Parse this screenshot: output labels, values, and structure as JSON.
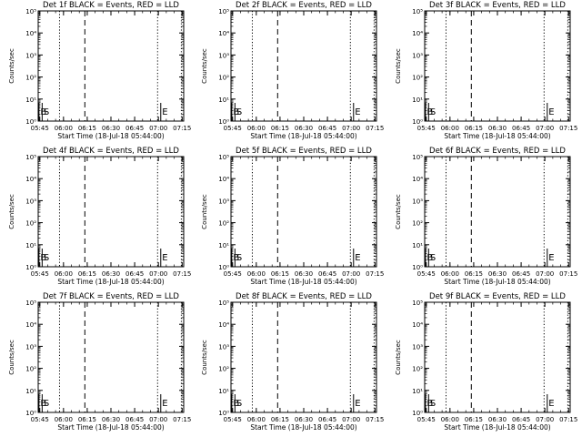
{
  "figure": {
    "background": "#ffffff",
    "foreground": "#000000",
    "lld_color": "#ff0000"
  },
  "chart_data": [
    {
      "type": "line",
      "title": "Det 1f BLACK = Events, RED = LLD",
      "xlabel": "Start Time (18-Jul-18 05:44:00)",
      "ylabel": "Counts/sec",
      "yscale": "log",
      "ylim": [
        1,
        100000
      ],
      "ytick_labels": [
        "10⁰",
        "10¹",
        "10²",
        "10³",
        "10⁴",
        "10⁵"
      ],
      "xtick_labels": [
        "05:45",
        "06:00",
        "06:15",
        "06:30",
        "06:45",
        "07:00",
        "07:15"
      ],
      "xlim_minutes": [
        0,
        92
      ],
      "xticks_minutes": [
        1,
        16,
        31,
        46,
        61,
        76,
        91
      ],
      "series": [],
      "markers": [
        {
          "label": "B",
          "style": "solid",
          "x_minutes": 0.5
        },
        {
          "label": "S",
          "style": "solid",
          "x_minutes": 2.5
        },
        {
          "label": "",
          "style": "dotted",
          "x_minutes": 13.5
        },
        {
          "label": "",
          "style": "dashed",
          "x_minutes": 29.5
        },
        {
          "label": "",
          "style": "dotted",
          "x_minutes": 75.5
        },
        {
          "label": "E",
          "style": "solid",
          "x_minutes": 77.5
        },
        {
          "label": "",
          "style": "dotted",
          "x_minutes": 90.5
        }
      ]
    },
    {
      "type": "line",
      "title": "Det 2f BLACK = Events, RED = LLD",
      "xlabel": "Start Time (18-Jul-18 05:44:00)",
      "ylabel": "Counts/sec",
      "yscale": "log",
      "ylim": [
        1,
        100000
      ],
      "ytick_labels": [
        "10⁰",
        "10¹",
        "10²",
        "10³",
        "10⁴",
        "10⁵"
      ],
      "xtick_labels": [
        "05:45",
        "06:00",
        "06:15",
        "06:30",
        "06:45",
        "07:00",
        "07:15"
      ],
      "xlim_minutes": [
        0,
        92
      ],
      "xticks_minutes": [
        1,
        16,
        31,
        46,
        61,
        76,
        91
      ],
      "series": [],
      "markers": [
        {
          "label": "B",
          "style": "solid",
          "x_minutes": 0.5
        },
        {
          "label": "S",
          "style": "solid",
          "x_minutes": 2.5
        },
        {
          "label": "",
          "style": "dotted",
          "x_minutes": 13.5
        },
        {
          "label": "",
          "style": "dashed",
          "x_minutes": 29.5
        },
        {
          "label": "",
          "style": "dotted",
          "x_minutes": 75.5
        },
        {
          "label": "E",
          "style": "solid",
          "x_minutes": 77.5
        },
        {
          "label": "",
          "style": "dotted",
          "x_minutes": 90.5
        }
      ]
    },
    {
      "type": "line",
      "title": "Det 3f BLACK = Events, RED = LLD",
      "xlabel": "Start Time (18-Jul-18 05:44:00)",
      "ylabel": "Counts/sec",
      "yscale": "log",
      "ylim": [
        1,
        100000
      ],
      "ytick_labels": [
        "10⁰",
        "10¹",
        "10²",
        "10³",
        "10⁴",
        "10⁵"
      ],
      "xtick_labels": [
        "05:45",
        "06:00",
        "06:15",
        "06:30",
        "06:45",
        "07:00",
        "07:15"
      ],
      "xlim_minutes": [
        0,
        92
      ],
      "xticks_minutes": [
        1,
        16,
        31,
        46,
        61,
        76,
        91
      ],
      "series": [],
      "markers": [
        {
          "label": "B",
          "style": "solid",
          "x_minutes": 0.5
        },
        {
          "label": "S",
          "style": "solid",
          "x_minutes": 2.5
        },
        {
          "label": "",
          "style": "dotted",
          "x_minutes": 13.5
        },
        {
          "label": "",
          "style": "dashed",
          "x_minutes": 29.5
        },
        {
          "label": "",
          "style": "dotted",
          "x_minutes": 75.5
        },
        {
          "label": "E",
          "style": "solid",
          "x_minutes": 77.5
        },
        {
          "label": "",
          "style": "dotted",
          "x_minutes": 90.5
        }
      ]
    },
    {
      "type": "line",
      "title": "Det 4f BLACK = Events, RED = LLD",
      "xlabel": "Start Time (18-Jul-18 05:44:00)",
      "ylabel": "Counts/sec",
      "yscale": "log",
      "ylim": [
        1,
        100000
      ],
      "ytick_labels": [
        "10⁰",
        "10¹",
        "10²",
        "10³",
        "10⁴",
        "10⁵"
      ],
      "xtick_labels": [
        "05:45",
        "06:00",
        "06:15",
        "06:30",
        "06:45",
        "07:00",
        "07:15"
      ],
      "xlim_minutes": [
        0,
        92
      ],
      "xticks_minutes": [
        1,
        16,
        31,
        46,
        61,
        76,
        91
      ],
      "series": [],
      "markers": [
        {
          "label": "B",
          "style": "solid",
          "x_minutes": 0.5
        },
        {
          "label": "S",
          "style": "solid",
          "x_minutes": 2.5
        },
        {
          "label": "",
          "style": "dotted",
          "x_minutes": 13.5
        },
        {
          "label": "",
          "style": "dashed",
          "x_minutes": 29.5
        },
        {
          "label": "",
          "style": "dotted",
          "x_minutes": 75.5
        },
        {
          "label": "E",
          "style": "solid",
          "x_minutes": 77.5
        },
        {
          "label": "",
          "style": "dotted",
          "x_minutes": 90.5
        }
      ]
    },
    {
      "type": "line",
      "title": "Det 5f BLACK = Events, RED = LLD",
      "xlabel": "Start Time (18-Jul-18 05:44:00)",
      "ylabel": "Counts/sec",
      "yscale": "log",
      "ylim": [
        1,
        100000
      ],
      "ytick_labels": [
        "10⁰",
        "10¹",
        "10²",
        "10³",
        "10⁴",
        "10⁵"
      ],
      "xtick_labels": [
        "05:45",
        "06:00",
        "06:15",
        "06:30",
        "06:45",
        "07:00",
        "07:15"
      ],
      "xlim_minutes": [
        0,
        92
      ],
      "xticks_minutes": [
        1,
        16,
        31,
        46,
        61,
        76,
        91
      ],
      "series": [],
      "markers": [
        {
          "label": "B",
          "style": "solid",
          "x_minutes": 0.5
        },
        {
          "label": "S",
          "style": "solid",
          "x_minutes": 2.5
        },
        {
          "label": "",
          "style": "dotted",
          "x_minutes": 13.5
        },
        {
          "label": "",
          "style": "dashed",
          "x_minutes": 29.5
        },
        {
          "label": "",
          "style": "dotted",
          "x_minutes": 75.5
        },
        {
          "label": "E",
          "style": "solid",
          "x_minutes": 77.5
        },
        {
          "label": "",
          "style": "dotted",
          "x_minutes": 90.5
        }
      ]
    },
    {
      "type": "line",
      "title": "Det 6f BLACK = Events, RED = LLD",
      "xlabel": "Start Time (18-Jul-18 05:44:00)",
      "ylabel": "Counts/sec",
      "yscale": "log",
      "ylim": [
        1,
        100000
      ],
      "ytick_labels": [
        "10⁰",
        "10¹",
        "10²",
        "10³",
        "10⁴",
        "10⁵"
      ],
      "xtick_labels": [
        "05:45",
        "06:00",
        "06:15",
        "06:30",
        "06:45",
        "07:00",
        "07:15"
      ],
      "xlim_minutes": [
        0,
        92
      ],
      "xticks_minutes": [
        1,
        16,
        31,
        46,
        61,
        76,
        91
      ],
      "series": [],
      "markers": [
        {
          "label": "B",
          "style": "solid",
          "x_minutes": 0.5
        },
        {
          "label": "S",
          "style": "solid",
          "x_minutes": 2.5
        },
        {
          "label": "",
          "style": "dotted",
          "x_minutes": 13.5
        },
        {
          "label": "",
          "style": "dashed",
          "x_minutes": 29.5
        },
        {
          "label": "",
          "style": "dotted",
          "x_minutes": 75.5
        },
        {
          "label": "E",
          "style": "solid",
          "x_minutes": 77.5
        },
        {
          "label": "",
          "style": "dotted",
          "x_minutes": 90.5
        }
      ]
    },
    {
      "type": "line",
      "title": "Det 7f BLACK = Events, RED = LLD",
      "xlabel": "Start Time (18-Jul-18 05:44:00)",
      "ylabel": "Counts/sec",
      "yscale": "log",
      "ylim": [
        1,
        100000
      ],
      "ytick_labels": [
        "10⁰",
        "10¹",
        "10²",
        "10³",
        "10⁴",
        "10⁵"
      ],
      "xtick_labels": [
        "05:45",
        "06:00",
        "06:15",
        "06:30",
        "06:45",
        "07:00",
        "07:15"
      ],
      "xlim_minutes": [
        0,
        92
      ],
      "xticks_minutes": [
        1,
        16,
        31,
        46,
        61,
        76,
        91
      ],
      "series": [],
      "markers": [
        {
          "label": "B",
          "style": "solid",
          "x_minutes": 0.5
        },
        {
          "label": "S",
          "style": "solid",
          "x_minutes": 2.5
        },
        {
          "label": "",
          "style": "dotted",
          "x_minutes": 13.5
        },
        {
          "label": "",
          "style": "dashed",
          "x_minutes": 29.5
        },
        {
          "label": "",
          "style": "dotted",
          "x_minutes": 75.5
        },
        {
          "label": "E",
          "style": "solid",
          "x_minutes": 77.5
        },
        {
          "label": "",
          "style": "dotted",
          "x_minutes": 90.5
        }
      ]
    },
    {
      "type": "line",
      "title": "Det 8f BLACK = Events, RED = LLD",
      "xlabel": "Start Time (18-Jul-18 05:44:00)",
      "ylabel": "Counts/sec",
      "yscale": "log",
      "ylim": [
        1,
        100000
      ],
      "ytick_labels": [
        "10⁰",
        "10¹",
        "10²",
        "10³",
        "10⁴",
        "10⁵"
      ],
      "xtick_labels": [
        "05:45",
        "06:00",
        "06:15",
        "06:30",
        "06:45",
        "07:00",
        "07:15"
      ],
      "xlim_minutes": [
        0,
        92
      ],
      "xticks_minutes": [
        1,
        16,
        31,
        46,
        61,
        76,
        91
      ],
      "series": [],
      "markers": [
        {
          "label": "B",
          "style": "solid",
          "x_minutes": 0.5
        },
        {
          "label": "S",
          "style": "solid",
          "x_minutes": 2.5
        },
        {
          "label": "",
          "style": "dotted",
          "x_minutes": 13.5
        },
        {
          "label": "",
          "style": "dashed",
          "x_minutes": 29.5
        },
        {
          "label": "",
          "style": "dotted",
          "x_minutes": 75.5
        },
        {
          "label": "E",
          "style": "solid",
          "x_minutes": 77.5
        },
        {
          "label": "",
          "style": "dotted",
          "x_minutes": 90.5
        }
      ]
    },
    {
      "type": "line",
      "title": "Det 9f BLACK = Events, RED = LLD",
      "xlabel": "Start Time (18-Jul-18 05:44:00)",
      "ylabel": "Counts/sec",
      "yscale": "log",
      "ylim": [
        1,
        100000
      ],
      "ytick_labels": [
        "10⁰",
        "10¹",
        "10²",
        "10³",
        "10⁴",
        "10⁵"
      ],
      "xtick_labels": [
        "05:45",
        "06:00",
        "06:15",
        "06:30",
        "06:45",
        "07:00",
        "07:15"
      ],
      "xlim_minutes": [
        0,
        92
      ],
      "xticks_minutes": [
        1,
        16,
        31,
        46,
        61,
        76,
        91
      ],
      "series": [],
      "markers": [
        {
          "label": "B",
          "style": "solid",
          "x_minutes": 0.5
        },
        {
          "label": "S",
          "style": "solid",
          "x_minutes": 2.5
        },
        {
          "label": "",
          "style": "dotted",
          "x_minutes": 13.5
        },
        {
          "label": "",
          "style": "dashed",
          "x_minutes": 29.5
        },
        {
          "label": "",
          "style": "dotted",
          "x_minutes": 75.5
        },
        {
          "label": "E",
          "style": "solid",
          "x_minutes": 77.5
        },
        {
          "label": "",
          "style": "dotted",
          "x_minutes": 90.5
        }
      ]
    }
  ]
}
